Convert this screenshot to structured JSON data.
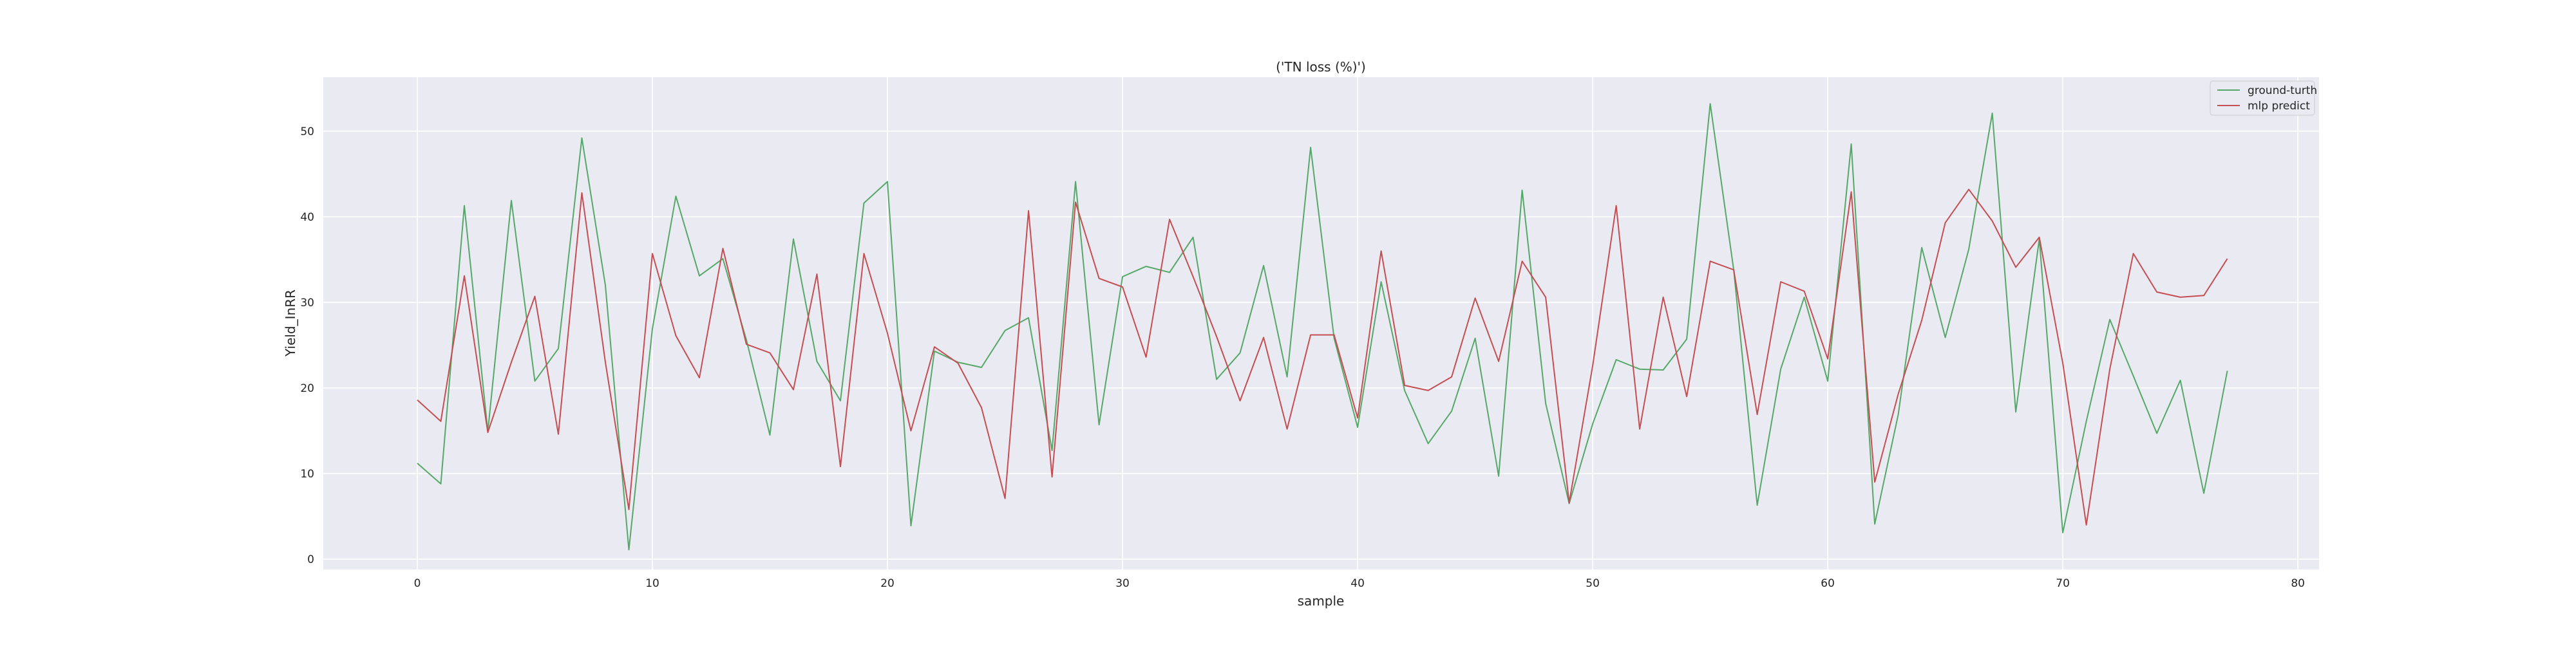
{
  "chart_data": {
    "type": "line",
    "title": "('TN loss (%)')",
    "xlabel": "sample",
    "ylabel": "Yield_InRR",
    "xlim": [
      -4,
      80.9
    ],
    "ylim": [
      -1.2,
      56.3
    ],
    "xticks": [
      0,
      10,
      20,
      30,
      40,
      50,
      60,
      70,
      80
    ],
    "yticks": [
      0,
      10,
      20,
      30,
      40,
      50
    ],
    "grid": true,
    "legend_position": "top-right",
    "series": [
      {
        "name": "ground-turth",
        "color": "#55a868",
        "x": [
          0,
          1,
          2,
          3,
          4,
          5,
          6,
          7,
          8,
          9,
          10,
          11,
          12,
          13,
          14,
          15,
          16,
          17,
          18,
          19,
          20,
          21,
          22,
          23,
          24,
          25,
          26,
          27,
          28,
          29,
          30,
          31,
          32,
          33,
          34,
          35,
          36,
          37,
          38,
          39,
          40,
          41,
          42,
          43,
          44,
          45,
          46,
          47,
          48,
          49,
          50,
          51,
          52,
          53,
          54,
          55,
          56,
          57,
          58,
          59,
          60,
          61,
          62,
          63,
          64,
          65,
          66,
          67,
          68,
          69,
          70,
          71,
          72,
          73,
          74,
          75,
          76,
          77
        ],
        "values": [
          11.2,
          8.8,
          41.3,
          14.9,
          41.9,
          20.8,
          24.6,
          49.2,
          32.0,
          1.1,
          26.9,
          42.4,
          33.1,
          35.1,
          25.6,
          14.5,
          37.4,
          23.1,
          18.5,
          41.6,
          44.1,
          3.9,
          24.3,
          23.0,
          22.4,
          26.7,
          28.2,
          12.7,
          44.1,
          15.7,
          33.0,
          34.2,
          33.5,
          37.6,
          21.0,
          24.1,
          34.3,
          21.3,
          48.1,
          25.8,
          15.4,
          32.4,
          19.7,
          13.5,
          17.3,
          25.8,
          9.7,
          43.1,
          18.2,
          6.5,
          15.8,
          23.3,
          22.2,
          22.1,
          25.7,
          53.2,
          33.8,
          6.3,
          22.2,
          30.6,
          20.8,
          48.5,
          4.1,
          16.9,
          36.4,
          25.9,
          36.2,
          52.1,
          17.2,
          37.4,
          3.1,
          16.1,
          28.0,
          21.4,
          14.7,
          20.9,
          7.7,
          22.0
        ]
      },
      {
        "name": "mlp predict",
        "color": "#c44e52",
        "x": [
          0,
          1,
          2,
          3,
          4,
          5,
          6,
          7,
          8,
          9,
          10,
          11,
          12,
          13,
          14,
          15,
          16,
          17,
          18,
          19,
          20,
          21,
          22,
          23,
          24,
          25,
          26,
          27,
          28,
          29,
          30,
          31,
          32,
          33,
          34,
          35,
          36,
          37,
          38,
          39,
          40,
          41,
          42,
          43,
          44,
          45,
          46,
          47,
          48,
          49,
          50,
          51,
          52,
          53,
          54,
          55,
          56,
          57,
          58,
          59,
          60,
          61,
          62,
          63,
          64,
          65,
          66,
          67,
          68,
          69,
          70,
          71,
          72,
          73,
          74,
          75,
          76,
          77
        ],
        "values": [
          18.6,
          16.1,
          33.1,
          14.8,
          23.0,
          30.7,
          14.6,
          42.8,
          23.0,
          5.8,
          35.7,
          26.1,
          21.2,
          36.3,
          25.1,
          24.1,
          19.8,
          33.3,
          10.8,
          35.7,
          26.4,
          15.0,
          24.8,
          22.9,
          17.7,
          7.1,
          40.7,
          9.6,
          41.7,
          32.8,
          31.8,
          23.6,
          39.7,
          33.0,
          26.0,
          18.5,
          25.9,
          15.2,
          26.2,
          26.2,
          16.5,
          36.0,
          20.3,
          19.7,
          21.3,
          30.5,
          23.1,
          34.8,
          30.6,
          6.6,
          22.6,
          41.3,
          15.2,
          30.6,
          19.0,
          34.8,
          33.8,
          16.9,
          32.4,
          31.3,
          23.4,
          42.9,
          9.0,
          19.3,
          27.9,
          39.3,
          43.2,
          39.5,
          34.1,
          37.6,
          22.9,
          4.0,
          22.2,
          35.7,
          31.2,
          30.6,
          30.8,
          35.1
        ]
      }
    ]
  }
}
